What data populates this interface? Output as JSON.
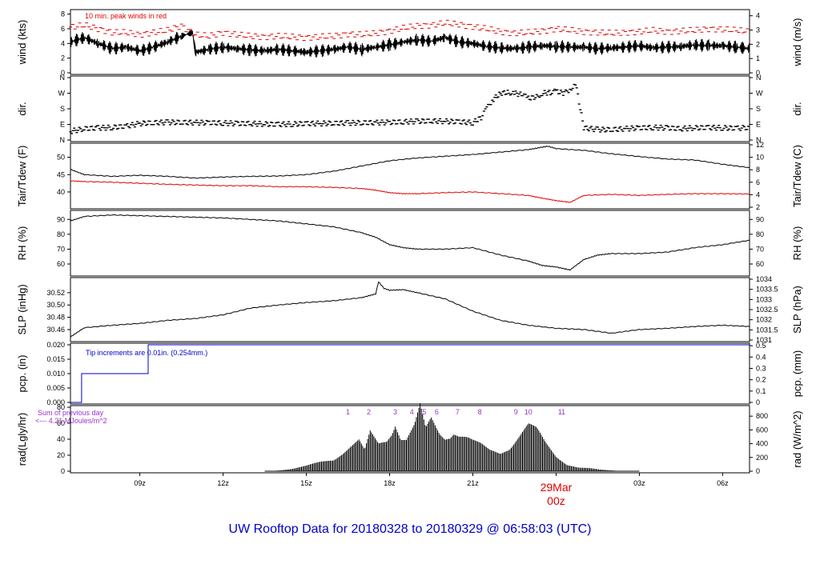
{
  "title": "UW Rooftop Data for 20180328  to  20180329 @ 06:58:03  (UTC)",
  "colors": {
    "peak": "#e00000",
    "dew": "#e00000",
    "precip": "#0000cc",
    "purple": "#9933cc",
    "date": "#e00000",
    "title": "#0000cc",
    "line": "#000000"
  },
  "x_axis": {
    "domain_hours": [
      6.5,
      30.97
    ],
    "ticks": [
      {
        "label": "09z",
        "hour": 9
      },
      {
        "label": "12z",
        "hour": 12
      },
      {
        "label": "15z",
        "hour": 15
      },
      {
        "label": "18z",
        "hour": 18
      },
      {
        "label": "21z",
        "hour": 21
      },
      {
        "label": "03z",
        "hour": 27
      },
      {
        "label": "06z",
        "hour": 30
      }
    ],
    "date_marker": {
      "date": "29Mar",
      "time": "00z",
      "hour": 24
    }
  },
  "chart_data": [
    {
      "type": "line",
      "id": "wind",
      "left_label": "wind (kts)",
      "right_label": "wind (m/s)",
      "ylim": [
        0,
        8.4
      ],
      "right_ylim": [
        0,
        4.32
      ],
      "left_ticks": [
        "0",
        "2",
        "4",
        "6",
        "8"
      ],
      "right_ticks": [
        "0",
        "1",
        "2",
        "3",
        "4"
      ],
      "annotation": "10 min. peak winds in red",
      "series": [
        {
          "x": [
            6.5,
            7,
            7.5,
            8,
            8.5,
            9,
            9.5,
            10,
            10.5,
            10.9,
            11,
            11.5,
            12,
            12.5,
            13,
            13.5,
            14,
            14.5,
            15,
            15.5,
            16,
            16.5,
            17,
            17.5,
            18,
            18.5,
            19,
            19.5,
            20,
            20.5,
            21,
            21.5,
            22,
            22.5,
            23,
            23.5,
            24,
            24.5,
            25,
            25.5,
            26,
            26.5,
            27,
            27.5,
            28,
            28.5,
            29,
            29.5,
            30,
            30.5,
            30.97
          ],
          "y": [
            4.2,
            4.8,
            4.0,
            3.3,
            3.5,
            3.0,
            3.5,
            4.2,
            5.0,
            5.5,
            2.8,
            3.2,
            3.5,
            3.3,
            3.1,
            3.0,
            3.2,
            3.0,
            2.8,
            3.0,
            3.2,
            3.5,
            3.2,
            3.5,
            3.8,
            4.2,
            4.5,
            4.3,
            4.8,
            4.2,
            4.0,
            3.6,
            3.4,
            3.3,
            3.5,
            3.7,
            3.6,
            3.5,
            3.5,
            3.3,
            3.4,
            3.5,
            3.7,
            3.4,
            3.5,
            3.6,
            3.8,
            3.7,
            3.7,
            3.5,
            3.3
          ]
        },
        {
          "name": "10 min. peak winds",
          "x": [
            6.5,
            7,
            7.5,
            8,
            8.5,
            9,
            9.5,
            10,
            10.5,
            11,
            11.5,
            12,
            12.5,
            13,
            13.5,
            14,
            14.5,
            15,
            15.5,
            16,
            16.5,
            17,
            17.5,
            18,
            18.5,
            19,
            19.5,
            20,
            20.5,
            21,
            21.5,
            22,
            22.5,
            23,
            23.5,
            24,
            24.5,
            25,
            25.5,
            26,
            26.5,
            27,
            27.5,
            28,
            28.5,
            29,
            29.5,
            30,
            30.5,
            30.97
          ],
          "y": [
            6.2,
            6.5,
            6.0,
            5.5,
            5.5,
            5.2,
            5.5,
            5.8,
            6.4,
            5.2,
            5.0,
            5.5,
            5.2,
            5.0,
            4.9,
            5.0,
            4.9,
            4.8,
            4.9,
            5.0,
            5.3,
            5.2,
            5.4,
            5.7,
            6.1,
            6.4,
            6.5,
            6.8,
            6.6,
            6.3,
            6.0,
            5.6,
            5.4,
            5.5,
            5.7,
            6.0,
            5.8,
            5.6,
            5.5,
            5.4,
            5.5,
            5.6,
            5.8,
            5.6,
            5.7,
            5.8,
            6.0,
            5.9,
            5.8,
            5.6
          ]
        }
      ]
    },
    {
      "type": "scatter",
      "id": "dir",
      "left_label": "dir.",
      "right_label": "dir.",
      "ylim": [
        0,
        360
      ],
      "left_ticks": [
        "N",
        "E",
        "S",
        "W",
        "N"
      ],
      "right_ticks": [
        "N",
        "E",
        "S",
        "W",
        "N"
      ],
      "series": [
        {
          "x": [
            6.5,
            7,
            7.5,
            8,
            8.5,
            9,
            9.5,
            10,
            10.5,
            11,
            11.5,
            12,
            12.5,
            13,
            13.5,
            14,
            14.5,
            15,
            15.5,
            16,
            16.5,
            17,
            17.5,
            18,
            18.5,
            19,
            19.5,
            20,
            20.5,
            21,
            21.3,
            21.5,
            21.7,
            22,
            22.3,
            22.5,
            22.8,
            23,
            23.3,
            23.5,
            23.8,
            24,
            24.3,
            24.5,
            24.7,
            25,
            25.5,
            26,
            26.5,
            27,
            27.5,
            28,
            28.5,
            29,
            29.5,
            30,
            30.5,
            30.97
          ],
          "y": [
            50,
            65,
            70,
            72,
            80,
            95,
            100,
            102,
            102,
            100,
            100,
            98,
            95,
            95,
            92,
            90,
            92,
            95,
            95,
            97,
            98,
            100,
            100,
            102,
            105,
            108,
            110,
            108,
            105,
            100,
            130,
            180,
            230,
            270,
            275,
            270,
            260,
            240,
            250,
            270,
            275,
            280,
            270,
            290,
            330,
            70,
            60,
            60,
            65,
            70,
            72,
            70,
            65,
            70,
            72,
            70,
            68,
            72
          ]
        }
      ]
    },
    {
      "type": "line",
      "id": "temp",
      "left_label": "Tair/Tdew (F)",
      "right_label": "Tair/Tdew (C)",
      "ylim": [
        35.6,
        53.6
      ],
      "right_ylim": [
        2,
        12
      ],
      "left_ticks": [
        "40",
        "45",
        "50"
      ],
      "right_ticks": [
        "2",
        "4",
        "6",
        "8",
        "10",
        "12"
      ],
      "series": [
        {
          "name": "Tair",
          "x": [
            6.5,
            7,
            8,
            9,
            10,
            11,
            12,
            13,
            14,
            15,
            16,
            17,
            18,
            19,
            20,
            21,
            22,
            23,
            23.7,
            24,
            25,
            26,
            27,
            28,
            29,
            30,
            30.97
          ],
          "y": [
            46.5,
            45.0,
            44.5,
            44.8,
            44.5,
            44.0,
            44.3,
            44.5,
            44.6,
            45.0,
            46.0,
            47.5,
            49.0,
            49.8,
            50.3,
            50.8,
            51.5,
            52.2,
            53.2,
            52.5,
            52.0,
            51.0,
            50.2,
            49.5,
            49.2,
            48.0,
            47.0
          ]
        },
        {
          "name": "Tdew",
          "x": [
            6.5,
            7,
            8,
            9,
            10,
            11,
            12,
            13,
            14,
            15,
            16,
            17,
            17.5,
            18,
            18.5,
            19,
            20,
            21,
            22,
            23,
            23.5,
            24,
            24.5,
            25,
            26,
            27,
            28,
            29,
            30,
            30.97
          ],
          "y": [
            43.2,
            43.0,
            42.8,
            42.5,
            42.2,
            42.0,
            41.8,
            41.8,
            41.5,
            41.5,
            41.3,
            41.0,
            40.5,
            39.8,
            39.5,
            39.5,
            39.8,
            40.0,
            39.5,
            39.0,
            38.2,
            37.5,
            37.0,
            39.0,
            39.3,
            39.0,
            39.3,
            39.5,
            39.5,
            39.4
          ]
        }
      ]
    },
    {
      "type": "line",
      "id": "rh",
      "left_label": "RH (%)",
      "right_label": "RH (%)",
      "ylim": [
        53,
        95
      ],
      "left_ticks": [
        "60",
        "70",
        "80",
        "90"
      ],
      "right_ticks": [
        "60",
        "70",
        "80",
        "90"
      ],
      "series": [
        {
          "x": [
            6.5,
            7,
            8,
            9,
            10,
            11,
            12,
            13,
            14,
            15,
            16,
            17,
            17.5,
            18,
            18.5,
            19,
            20,
            21,
            22,
            23,
            23.5,
            24,
            24.5,
            25,
            25.5,
            26,
            27,
            28,
            29,
            30,
            30.97
          ],
          "y": [
            89,
            92,
            93,
            92.5,
            92,
            91.5,
            91,
            90,
            89,
            87,
            85,
            81,
            78,
            73,
            71,
            70,
            70,
            71,
            66,
            62,
            59,
            58,
            56,
            63,
            66,
            67,
            67,
            68,
            71,
            73,
            76
          ]
        }
      ]
    },
    {
      "type": "line",
      "id": "slp",
      "left_label": "SLP (inHg)",
      "right_label": "SLP (hPa)",
      "ylim": [
        30.443,
        30.542
      ],
      "right_ylim": [
        1031,
        1034
      ],
      "left_ticks": [
        "30.46",
        "30.48",
        "30.50",
        "30.52"
      ],
      "right_ticks": [
        "1031",
        "1031.5",
        "1032",
        "1032.5",
        "1033",
        "1033.5",
        "1034"
      ],
      "series": [
        {
          "x": [
            6.5,
            7,
            8,
            9,
            10,
            11,
            12,
            13,
            14,
            15,
            16,
            17,
            17.5,
            17.6,
            17.8,
            18,
            18.5,
            19,
            20,
            21,
            22,
            23,
            24,
            25,
            26,
            27,
            28,
            29,
            30,
            30.97
          ],
          "y": [
            30.448,
            30.463,
            30.467,
            30.47,
            30.475,
            30.478,
            30.484,
            30.495,
            30.5,
            30.504,
            30.507,
            30.512,
            30.518,
            30.538,
            30.527,
            30.524,
            30.525,
            30.52,
            30.51,
            30.49,
            30.475,
            30.467,
            30.462,
            30.46,
            30.454,
            30.46,
            30.462,
            30.465,
            30.467,
            30.465
          ]
        }
      ]
    },
    {
      "type": "line",
      "id": "pcp",
      "left_label": "pcp. (in)",
      "right_label": "pcp. (mm)",
      "ylim": [
        0,
        0.02
      ],
      "right_ylim": [
        0,
        0.508
      ],
      "left_ticks": [
        "0.000",
        "0.005",
        "0.010",
        "0.015",
        "0.020"
      ],
      "right_ticks": [
        "0",
        "0.1",
        "0.2",
        "0.3",
        "0.4",
        "0.5"
      ],
      "annotation": "Tip increments are 0.01in. (0.254mm.)",
      "series": [
        {
          "x": [
            6.5,
            6.9,
            6.9,
            9.3,
            9.3,
            30.97
          ],
          "y": [
            0,
            0,
            0.01,
            0.01,
            0.02,
            0.02
          ]
        }
      ]
    },
    {
      "type": "area",
      "id": "rad",
      "left_label": "rad(Lgly/hr)",
      "right_label": "rad (W/m^2)",
      "ylim": [
        0,
        80
      ],
      "right_ylim": [
        0,
        930
      ],
      "left_ticks": [
        "0",
        "20",
        "40",
        "60",
        "80"
      ],
      "right_ticks": [
        "0",
        "200",
        "400",
        "600",
        "800"
      ],
      "annotations": [
        "Sum of previous day",
        "<--- 4.21 MJoules/m^2"
      ],
      "markers": [
        {
          "label": "1",
          "hour": 16.5
        },
        {
          "label": "2",
          "hour": 17.25
        },
        {
          "label": "3",
          "hour": 18.2
        },
        {
          "label": "4",
          "hour": 18.8
        },
        {
          "label": "5",
          "hour": 19.25
        },
        {
          "label": "6",
          "hour": 19.7
        },
        {
          "label": "7",
          "hour": 20.45
        },
        {
          "label": "8",
          "hour": 21.25
        },
        {
          "label": "9",
          "hour": 22.55
        },
        {
          "label": "10",
          "hour": 23.0
        },
        {
          "label": "11",
          "hour": 24.2
        }
      ],
      "series": [
        {
          "x": [
            6.5,
            13.5,
            14,
            14.5,
            15,
            15.5,
            16,
            16.3,
            16.6,
            16.9,
            17.1,
            17.3,
            17.6,
            17.9,
            18.2,
            18.4,
            18.6,
            18.9,
            19.1,
            19.3,
            19.5,
            19.8,
            20,
            20.3,
            20.5,
            20.8,
            21,
            21.3,
            21.6,
            22,
            22.4,
            22.7,
            23,
            23.3,
            23.6,
            24,
            24.4,
            24.8,
            25.2,
            25.6,
            26,
            26.5,
            30.97
          ],
          "y": [
            0,
            0,
            1,
            3,
            7,
            13,
            18,
            24,
            32,
            40,
            27,
            52,
            38,
            45,
            70,
            45,
            42,
            60,
            85,
            55,
            70,
            52,
            48,
            58,
            50,
            45,
            40,
            35,
            28,
            25,
            38,
            50,
            62,
            55,
            38,
            20,
            10,
            5,
            4,
            2,
            1,
            0,
            0
          ]
        }
      ]
    }
  ]
}
